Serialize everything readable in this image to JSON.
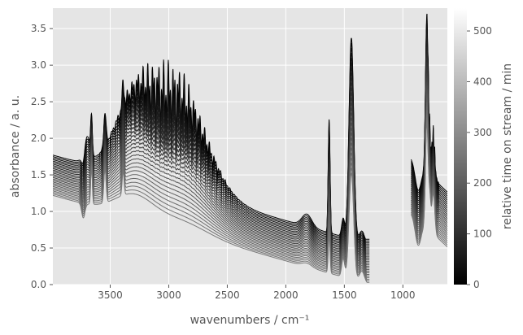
{
  "chart_data": {
    "type": "line",
    "xlabel": "wavenumbers / cm⁻¹",
    "ylabel": "absorbance / a. u.",
    "xlim": [
      3990,
      620
    ],
    "ylim": [
      0,
      3.78
    ],
    "x_inverted": true,
    "grid": true,
    "x_ticks": [
      3500,
      3000,
      2500,
      2000,
      1500,
      1000
    ],
    "y_ticks": [
      0.0,
      0.5,
      1.0,
      1.5,
      2.0,
      2.5,
      3.0,
      3.5
    ],
    "segments": [
      [
        3990,
        1285
      ],
      [
        930,
        620
      ]
    ],
    "series_count": 28,
    "baseline_at_3990": {
      "first": 1.22,
      "last": 1.77
    },
    "minimum_near_2000": {
      "first": 0.0,
      "last": 0.62
    },
    "colorbar": {
      "label": "relative time on stream / min",
      "range": [
        0,
        545
      ],
      "ticks": [
        0,
        100,
        200,
        300,
        400,
        500
      ],
      "colormap": "grayscale (black = 0 min, white = 545 min)"
    }
  },
  "colors": {
    "plot_background": "#e5e5e5",
    "grid": "#ffffff",
    "text": "#555555"
  }
}
